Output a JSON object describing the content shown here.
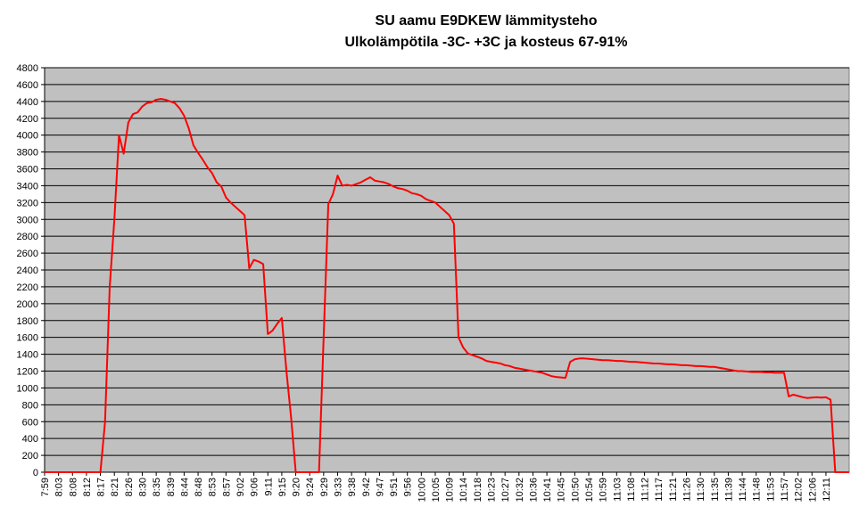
{
  "chart_data": {
    "type": "line",
    "title": "SU aamu E9DKEW lämmitysteho",
    "subtitle": "Ulkolämpötila -3C- +3C ja kosteus 67-91%",
    "categories": [
      "7:59",
      null,
      null,
      "8:03",
      null,
      null,
      "8:08",
      null,
      null,
      "8:12",
      null,
      null,
      "8:17",
      null,
      null,
      "8:21",
      null,
      null,
      "8:26",
      null,
      null,
      "8:30",
      null,
      null,
      "8:35",
      null,
      null,
      "8:39",
      null,
      null,
      "8:44",
      null,
      null,
      "8:48",
      null,
      null,
      "8:53",
      null,
      null,
      "8:57",
      null,
      null,
      "9:02",
      null,
      null,
      "9:06",
      null,
      null,
      "9:11",
      null,
      null,
      "9:15",
      null,
      null,
      "9:20",
      null,
      null,
      "9:24",
      null,
      null,
      "9:29",
      null,
      null,
      "9:33",
      null,
      null,
      "9:38",
      null,
      null,
      "9:42",
      null,
      null,
      "9:47",
      null,
      null,
      "9:51",
      null,
      null,
      "9:56",
      null,
      null,
      "10:00",
      null,
      null,
      "10:05",
      null,
      null,
      "10:09",
      null,
      null,
      "10:14",
      null,
      null,
      "10:18",
      null,
      null,
      "10:23",
      null,
      null,
      "10:27",
      null,
      null,
      "10:32",
      null,
      null,
      "10:36",
      null,
      null,
      "10:41",
      null,
      null,
      "10:45",
      null,
      null,
      "10:50",
      null,
      null,
      "10:54",
      null,
      null,
      "10:59",
      null,
      null,
      "11:03",
      null,
      null,
      "11:08",
      null,
      null,
      "11:12",
      null,
      null,
      "11:17",
      null,
      null,
      "11:21",
      null,
      null,
      "11:26",
      null,
      null,
      "11:30",
      null,
      null,
      "11:35",
      null,
      null,
      "11:39",
      null,
      null,
      "11:44",
      null,
      null,
      "11:48",
      null,
      null,
      "11:53",
      null,
      null,
      "11:57",
      null,
      null,
      "12:02",
      null,
      null,
      "12:06",
      null,
      null,
      "12:11",
      null,
      null,
      null,
      null,
      null
    ],
    "values": [
      0,
      0,
      0,
      0,
      0,
      0,
      0,
      0,
      0,
      0,
      0,
      0,
      0,
      600,
      2200,
      3000,
      4000,
      3780,
      4150,
      4250,
      4270,
      4340,
      4380,
      4390,
      4420,
      4430,
      4420,
      4400,
      4380,
      4320,
      4230,
      4080,
      3880,
      3790,
      3710,
      3620,
      3550,
      3440,
      3390,
      3260,
      3200,
      3150,
      3100,
      3050,
      2420,
      2520,
      2500,
      2470,
      1640,
      1680,
      1760,
      1830,
      1200,
      650,
      0,
      0,
      0,
      0,
      0,
      0,
      1600,
      3180,
      3300,
      3520,
      3400,
      3410,
      3400,
      3420,
      3440,
      3470,
      3500,
      3460,
      3450,
      3440,
      3420,
      3390,
      3370,
      3360,
      3340,
      3310,
      3300,
      3280,
      3240,
      3220,
      3200,
      3150,
      3100,
      3050,
      2950,
      1600,
      1480,
      1410,
      1390,
      1370,
      1350,
      1320,
      1310,
      1300,
      1290,
      1270,
      1260,
      1240,
      1230,
      1220,
      1210,
      1200,
      1190,
      1180,
      1160,
      1140,
      1130,
      1125,
      1120,
      1310,
      1340,
      1350,
      1350,
      1345,
      1340,
      1335,
      1330,
      1330,
      1325,
      1320,
      1320,
      1315,
      1310,
      1310,
      1305,
      1300,
      1295,
      1290,
      1290,
      1285,
      1280,
      1280,
      1275,
      1270,
      1270,
      1265,
      1260,
      1260,
      1255,
      1250,
      1250,
      1240,
      1230,
      1220,
      1210,
      1200,
      1200,
      1195,
      1190,
      1190,
      1190,
      1185,
      1185,
      1180,
      1180,
      1180,
      900,
      920,
      905,
      890,
      880,
      885,
      890,
      885,
      890,
      860,
      0,
      0,
      0,
      0
    ],
    "color": "#ff0000",
    "ylim": [
      0,
      4800
    ],
    "yticks": [
      0,
      200,
      400,
      600,
      800,
      1000,
      1200,
      1400,
      1600,
      1800,
      2000,
      2200,
      2400,
      2600,
      2800,
      3000,
      3200,
      3400,
      3600,
      3800,
      4000,
      4200,
      4400,
      4600,
      4800
    ],
    "grid": true,
    "plot_background": "#c0c0c0"
  }
}
